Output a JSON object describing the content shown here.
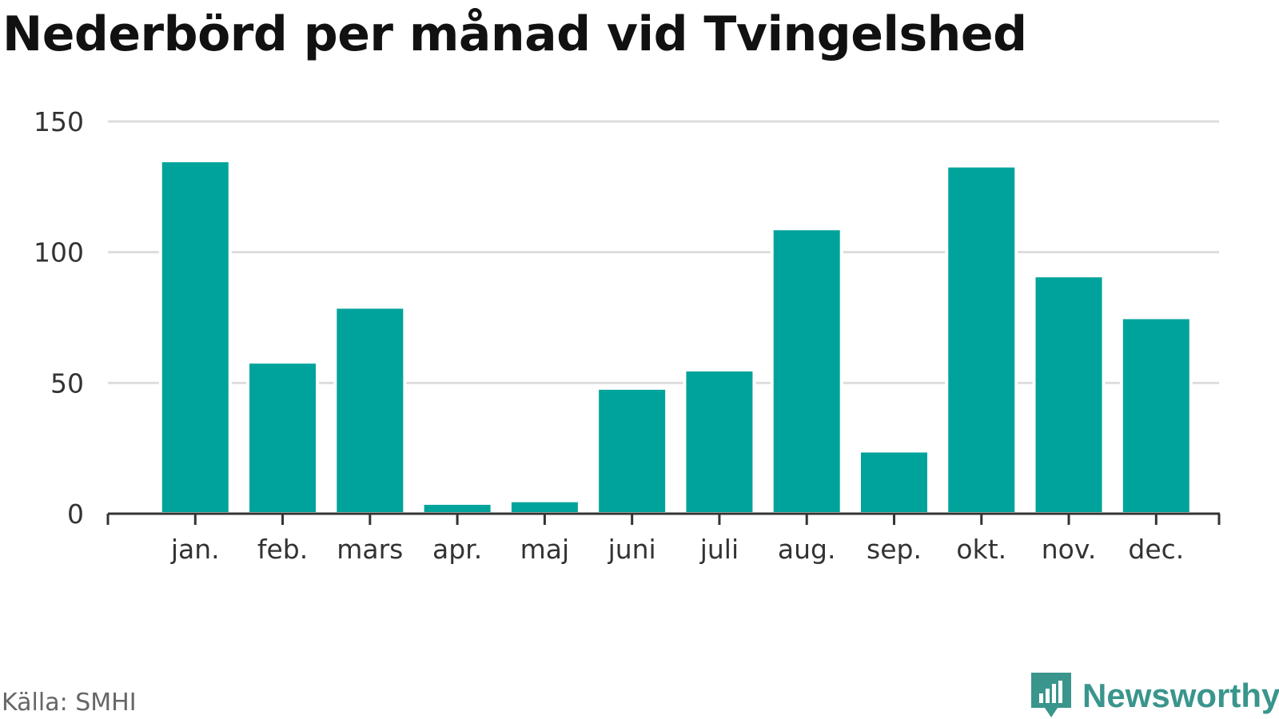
{
  "title": "Nederbörd per månad vid Tvingelshed",
  "source": "Källa: SMHI",
  "brand": {
    "name": "Newsworthy",
    "icon": "newsworthy-logo-icon"
  },
  "colors": {
    "bar": "#00a39b",
    "grid": "#dddddd",
    "axis": "#333333",
    "brand": "#3a958c"
  },
  "chart_data": {
    "type": "bar",
    "categories": [
      "jan.",
      "feb.",
      "mars",
      "apr.",
      "maj",
      "juni",
      "juli",
      "aug.",
      "sep.",
      "okt.",
      "nov.",
      "dec."
    ],
    "values": [
      135,
      58,
      79,
      4,
      5,
      48,
      55,
      109,
      24,
      133,
      91,
      75
    ],
    "yticks": [
      0,
      50,
      100,
      150
    ],
    "ylim": [
      0,
      150
    ],
    "grid": true,
    "legend": "none"
  }
}
